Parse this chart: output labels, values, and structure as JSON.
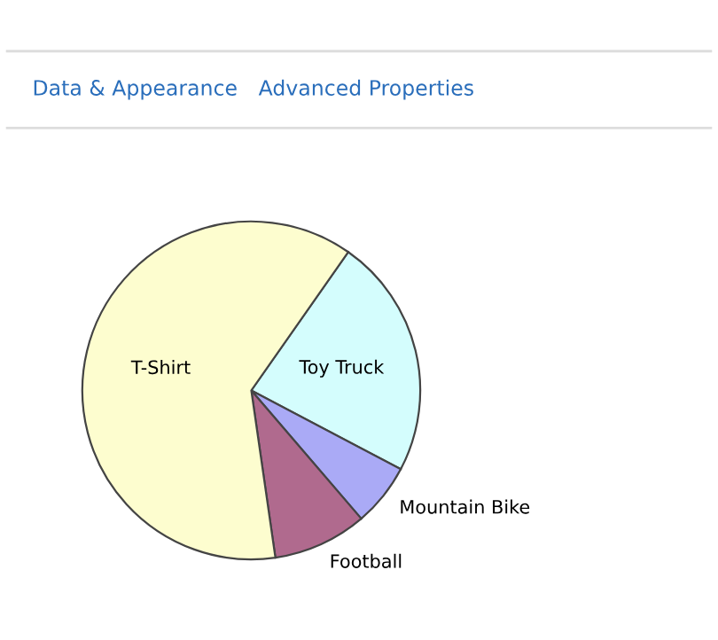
{
  "chart_data": {
    "type": "pie",
    "categories": [
      "Toy Truck",
      "Mountain Bike",
      "Football",
      "T-Shirt"
    ],
    "values": [
      23,
      6,
      9,
      62
    ],
    "colors": [
      "#d4fdfd",
      "#aaaaf6",
      "#b06a8e",
      "#fdfdcf"
    ],
    "annotations": [
      "Data & Appearance",
      "Advanced Properties"
    ],
    "legend": false
  }
}
